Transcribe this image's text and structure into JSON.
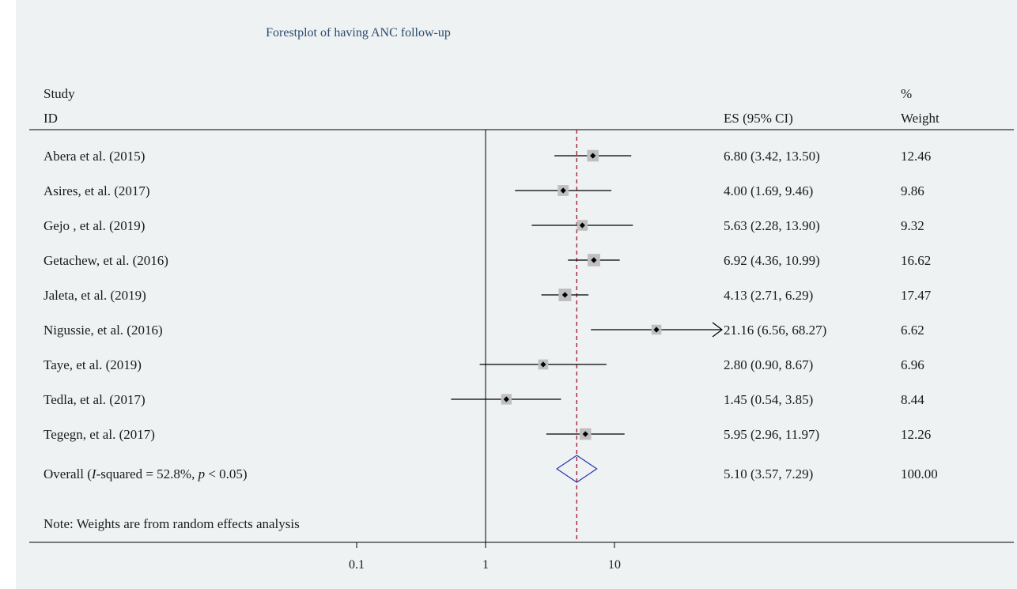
{
  "chart_data": {
    "type": "forest",
    "title": "Forestplot of having ANC follow-up",
    "headers": {
      "study_line1": "Study",
      "study_line2": "ID",
      "es": "ES (95% CI)",
      "weight_line1": "%",
      "weight_line2": "Weight"
    },
    "x_scale": "log",
    "x_ticks": [
      {
        "value": 0.1,
        "label": "0.1"
      },
      {
        "value": 1,
        "label": "1"
      },
      {
        "value": 10,
        "label": "10"
      }
    ],
    "null_line": 1,
    "overall_line": 5.1,
    "studies": [
      {
        "label": "Abera et al. (2015)",
        "es": 6.8,
        "lower": 3.42,
        "upper": 13.5,
        "es_text": "6.80 (3.42, 13.50)",
        "weight": 12.46,
        "weight_text": "12.46"
      },
      {
        "label": "Asires, et al. (2017)",
        "es": 4.0,
        "lower": 1.69,
        "upper": 9.46,
        "es_text": "4.00 (1.69, 9.46)",
        "weight": 9.86,
        "weight_text": "9.86"
      },
      {
        "label": "Gejo , et al. (2019)",
        "es": 5.63,
        "lower": 2.28,
        "upper": 13.9,
        "es_text": "5.63 (2.28, 13.90)",
        "weight": 9.32,
        "weight_text": "9.32"
      },
      {
        "label": "Getachew, et al. (2016)",
        "es": 6.92,
        "lower": 4.36,
        "upper": 10.99,
        "es_text": "6.92 (4.36, 10.99)",
        "weight": 16.62,
        "weight_text": "16.62"
      },
      {
        "label": "Jaleta, et al. (2019)",
        "es": 4.13,
        "lower": 2.71,
        "upper": 6.29,
        "es_text": "4.13 (2.71, 6.29)",
        "weight": 17.47,
        "weight_text": "17.47"
      },
      {
        "label": "Nigussie, et al. (2016)",
        "es": 21.16,
        "lower": 6.56,
        "upper": 68.27,
        "es_text": "21.16 (6.56, 68.27)",
        "weight": 6.62,
        "weight_text": "6.62",
        "truncated_upper": true
      },
      {
        "label": "Taye, et al. (2019)",
        "es": 2.8,
        "lower": 0.9,
        "upper": 8.67,
        "es_text": "2.80 (0.90, 8.67)",
        "weight": 6.96,
        "weight_text": "6.96"
      },
      {
        "label": "Tedla, et al. (2017)",
        "es": 1.45,
        "lower": 0.54,
        "upper": 3.85,
        "es_text": "1.45 (0.54, 3.85)",
        "weight": 8.44,
        "weight_text": "8.44"
      },
      {
        "label": "Tegegn, et al. (2017)",
        "es": 5.95,
        "lower": 2.96,
        "upper": 11.97,
        "es_text": "5.95 (2.96, 11.97)",
        "weight": 12.26,
        "weight_text": "12.26"
      }
    ],
    "overall": {
      "label_prefix": "Overall (",
      "label_i": "I",
      "label_mid": "-squared = 52.8%, ",
      "label_p": "p",
      "label_suffix": " < 0.05)",
      "es": 5.1,
      "lower": 3.57,
      "upper": 7.29,
      "es_text": "5.10 (3.57, 7.29)",
      "weight_text": "100.00"
    },
    "note": "Note: Weights are from random effects analysis",
    "colors": {
      "box": "#bfbfbf",
      "point": "#000000",
      "ci_line": "#000000",
      "overall_diamond": "#2b35a8",
      "overall_line": "#a0203a",
      "title": "#2c4a6e"
    }
  }
}
